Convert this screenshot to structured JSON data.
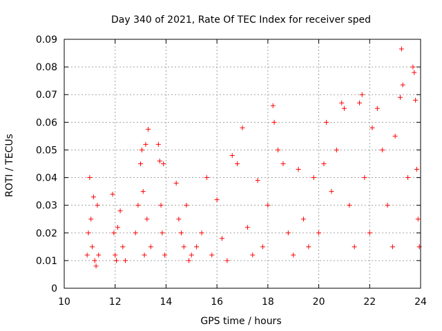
{
  "chart_data": {
    "type": "scatter",
    "title": "Day 340 of 2021, Rate Of TEC Index for receiver sped",
    "xlabel": "GPS time / hours",
    "ylabel": "ROTI / TECUs",
    "xlim": [
      10,
      24
    ],
    "ylim": [
      0,
      0.09
    ],
    "xticks": [
      10,
      12,
      14,
      16,
      18,
      20,
      22,
      24
    ],
    "xtick_labels": [
      "10",
      "12",
      "14",
      "16",
      "18",
      "20",
      "22",
      "24"
    ],
    "yticks": [
      0,
      0.01,
      0.02,
      0.03,
      0.04,
      0.05,
      0.06,
      0.07,
      0.08,
      0.09
    ],
    "ytick_labels": [
      "0",
      "0.01",
      "0.02",
      "0.03",
      "0.04",
      "0.05",
      "0.06",
      "0.07",
      "0.08",
      "0.09"
    ],
    "grid": true,
    "marker": "+",
    "color": "#ff0000",
    "series": [
      {
        "name": "sped",
        "points": [
          [
            10.9,
            0.012
          ],
          [
            10.95,
            0.02
          ],
          [
            11.0,
            0.04
          ],
          [
            11.05,
            0.025
          ],
          [
            11.1,
            0.015
          ],
          [
            11.15,
            0.033
          ],
          [
            11.2,
            0.01
          ],
          [
            11.25,
            0.008
          ],
          [
            11.3,
            0.03
          ],
          [
            11.35,
            0.012
          ],
          [
            11.9,
            0.034
          ],
          [
            11.95,
            0.02
          ],
          [
            12.0,
            0.012
          ],
          [
            12.05,
            0.01
          ],
          [
            12.1,
            0.022
          ],
          [
            12.2,
            0.028
          ],
          [
            12.3,
            0.015
          ],
          [
            12.4,
            0.01
          ],
          [
            12.8,
            0.02
          ],
          [
            12.9,
            0.03
          ],
          [
            13.0,
            0.045
          ],
          [
            13.05,
            0.05
          ],
          [
            13.1,
            0.035
          ],
          [
            13.15,
            0.012
          ],
          [
            13.2,
            0.052
          ],
          [
            13.25,
            0.025
          ],
          [
            13.3,
            0.0575
          ],
          [
            13.4,
            0.015
          ],
          [
            13.7,
            0.052
          ],
          [
            13.75,
            0.046
          ],
          [
            13.8,
            0.03
          ],
          [
            13.85,
            0.02
          ],
          [
            13.9,
            0.045
          ],
          [
            13.95,
            0.012
          ],
          [
            14.4,
            0.038
          ],
          [
            14.5,
            0.025
          ],
          [
            14.6,
            0.02
          ],
          [
            14.7,
            0.015
          ],
          [
            14.8,
            0.03
          ],
          [
            14.9,
            0.01
          ],
          [
            15.0,
            0.012
          ],
          [
            15.2,
            0.015
          ],
          [
            15.4,
            0.02
          ],
          [
            15.6,
            0.04
          ],
          [
            15.8,
            0.012
          ],
          [
            16.0,
            0.032
          ],
          [
            16.2,
            0.018
          ],
          [
            16.4,
            0.01
          ],
          [
            16.6,
            0.048
          ],
          [
            16.8,
            0.045
          ],
          [
            17.0,
            0.058
          ],
          [
            17.2,
            0.022
          ],
          [
            17.4,
            0.012
          ],
          [
            17.6,
            0.039
          ],
          [
            17.8,
            0.015
          ],
          [
            18.0,
            0.03
          ],
          [
            18.2,
            0.066
          ],
          [
            18.25,
            0.06
          ],
          [
            18.4,
            0.05
          ],
          [
            18.6,
            0.045
          ],
          [
            18.8,
            0.02
          ],
          [
            19.0,
            0.012
          ],
          [
            19.2,
            0.043
          ],
          [
            19.4,
            0.025
          ],
          [
            19.6,
            0.015
          ],
          [
            19.8,
            0.04
          ],
          [
            20.0,
            0.02
          ],
          [
            20.2,
            0.045
          ],
          [
            20.3,
            0.06
          ],
          [
            20.5,
            0.035
          ],
          [
            20.7,
            0.05
          ],
          [
            20.9,
            0.067
          ],
          [
            21.0,
            0.065
          ],
          [
            21.2,
            0.03
          ],
          [
            21.4,
            0.015
          ],
          [
            21.6,
            0.067
          ],
          [
            21.7,
            0.07
          ],
          [
            21.8,
            0.04
          ],
          [
            22.0,
            0.02
          ],
          [
            22.1,
            0.058
          ],
          [
            22.3,
            0.065
          ],
          [
            22.5,
            0.05
          ],
          [
            22.7,
            0.03
          ],
          [
            22.9,
            0.015
          ],
          [
            23.0,
            0.055
          ],
          [
            23.2,
            0.069
          ],
          [
            23.25,
            0.0865
          ],
          [
            23.3,
            0.0735
          ],
          [
            23.5,
            0.04
          ],
          [
            23.7,
            0.08
          ],
          [
            23.75,
            0.078
          ],
          [
            23.8,
            0.068
          ],
          [
            23.85,
            0.043
          ],
          [
            23.9,
            0.025
          ],
          [
            23.95,
            0.015
          ]
        ]
      }
    ]
  }
}
